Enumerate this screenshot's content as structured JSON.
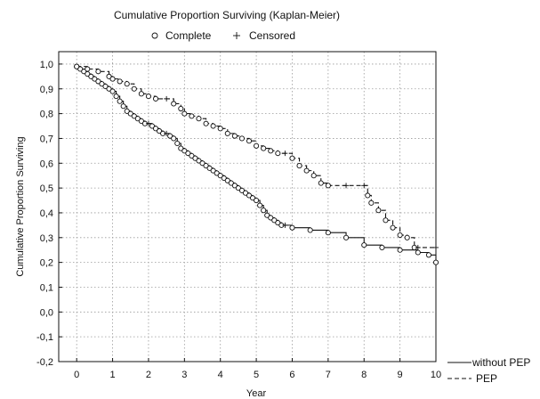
{
  "chart_data": {
    "type": "line",
    "title": "Cumulative Proportion Surviving (Kaplan-Meier)",
    "legend_top": [
      {
        "symbol": "o",
        "label": "Complete"
      },
      {
        "symbol": "+",
        "label": "Censored"
      }
    ],
    "legend_lines": [
      {
        "style": "solid",
        "label": "without PEP"
      },
      {
        "style": "dashed",
        "label": "PEP"
      }
    ],
    "xlabel": "Year",
    "ylabel": "Cumulative Proportion Surviving",
    "xlim": [
      -0.5,
      10
    ],
    "ylim": [
      -0.2,
      1.05
    ],
    "xticks": [
      "0",
      "1",
      "2",
      "3",
      "4",
      "5",
      "6",
      "7",
      "8",
      "9",
      "10"
    ],
    "yticks": [
      "1,0",
      "0,9",
      "0,8",
      "0,7",
      "0,6",
      "0,5",
      "0,4",
      "0,3",
      "0,2",
      "0,1",
      "0,0",
      "-0,1",
      "-0,2"
    ],
    "grid": true,
    "legend_position": "bottom-right outside",
    "series": [
      {
        "name": "without PEP",
        "style": "solid",
        "x": [
          0,
          0.1,
          0.2,
          0.3,
          0.4,
          0.5,
          0.6,
          0.7,
          0.8,
          0.9,
          1.0,
          1.1,
          1.2,
          1.3,
          1.4,
          1.5,
          1.6,
          1.7,
          1.8,
          1.9,
          2.0,
          2.1,
          2.2,
          2.3,
          2.4,
          2.5,
          2.6,
          2.7,
          2.8,
          2.9,
          3.0,
          3.1,
          3.2,
          3.3,
          3.4,
          3.5,
          3.6,
          3.7,
          3.8,
          3.9,
          4.0,
          4.1,
          4.2,
          4.3,
          4.4,
          4.5,
          4.6,
          4.7,
          4.8,
          4.9,
          5.0,
          5.1,
          5.2,
          5.3,
          5.4,
          5.5,
          5.6,
          5.7,
          5.8,
          6.0,
          6.5,
          7.0,
          7.5,
          8.0,
          8.5,
          9.0,
          9.5,
          9.8,
          10.0
        ],
        "y": [
          0.99,
          0.98,
          0.97,
          0.96,
          0.95,
          0.94,
          0.93,
          0.92,
          0.91,
          0.9,
          0.89,
          0.87,
          0.85,
          0.83,
          0.81,
          0.8,
          0.79,
          0.78,
          0.77,
          0.76,
          0.76,
          0.75,
          0.74,
          0.73,
          0.72,
          0.72,
          0.71,
          0.7,
          0.68,
          0.66,
          0.65,
          0.64,
          0.63,
          0.62,
          0.61,
          0.6,
          0.59,
          0.58,
          0.57,
          0.56,
          0.55,
          0.54,
          0.53,
          0.52,
          0.51,
          0.5,
          0.49,
          0.48,
          0.47,
          0.46,
          0.45,
          0.43,
          0.41,
          0.39,
          0.38,
          0.37,
          0.36,
          0.35,
          0.35,
          0.34,
          0.33,
          0.32,
          0.3,
          0.27,
          0.26,
          0.25,
          0.24,
          0.23,
          0.2
        ]
      },
      {
        "name": "PEP",
        "style": "dashed",
        "x": [
          0,
          0.3,
          0.6,
          0.9,
          1.0,
          1.2,
          1.4,
          1.6,
          1.8,
          2.0,
          2.2,
          2.5,
          2.7,
          2.9,
          3.0,
          3.2,
          3.4,
          3.6,
          3.8,
          4.0,
          4.2,
          4.4,
          4.6,
          4.8,
          5.0,
          5.2,
          5.4,
          5.6,
          5.8,
          6.0,
          6.2,
          6.4,
          6.6,
          6.8,
          7.0,
          7.5,
          8.0,
          8.1,
          8.2,
          8.4,
          8.6,
          8.8,
          9.0,
          9.2,
          9.4,
          9.5,
          10.0
        ],
        "y": [
          0.99,
          0.98,
          0.97,
          0.95,
          0.94,
          0.93,
          0.92,
          0.9,
          0.88,
          0.87,
          0.86,
          0.86,
          0.84,
          0.82,
          0.8,
          0.79,
          0.78,
          0.76,
          0.75,
          0.74,
          0.72,
          0.71,
          0.7,
          0.69,
          0.67,
          0.66,
          0.65,
          0.64,
          0.64,
          0.62,
          0.59,
          0.57,
          0.55,
          0.52,
          0.51,
          0.51,
          0.51,
          0.47,
          0.44,
          0.41,
          0.37,
          0.34,
          0.31,
          0.3,
          0.26,
          0.26,
          0.26
        ]
      }
    ]
  }
}
